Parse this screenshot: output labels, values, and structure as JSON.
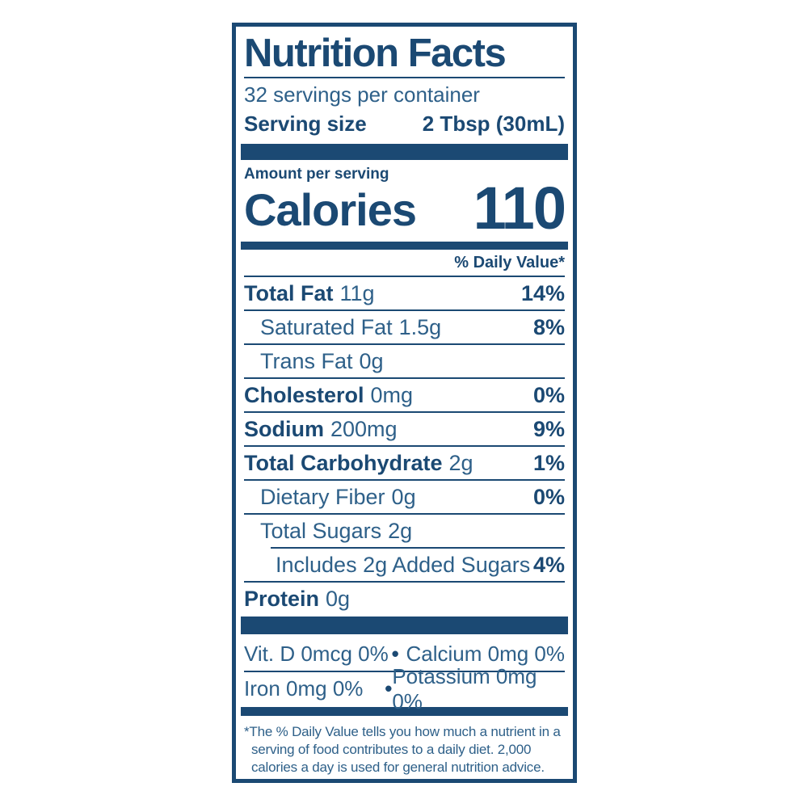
{
  "colors": {
    "navy": "#1B4973",
    "steel": "#2E6089",
    "background": "#FFFFFF"
  },
  "header": {
    "title": "Nutrition Facts",
    "servings_per_container": "32 servings per container",
    "serving_size_label": "Serving size",
    "serving_size_value": "2 Tbsp (30mL)"
  },
  "calories": {
    "amount_per_serving_label": "Amount per serving",
    "label": "Calories",
    "value": "110"
  },
  "daily_value_header": "% Daily Value*",
  "nutrients": [
    {
      "name": "Total Fat",
      "bold": true,
      "amount": "11g",
      "dv": "14%",
      "indent": 0,
      "sep_below": "full"
    },
    {
      "name": "Saturated Fat",
      "bold": false,
      "amount": "1.5g",
      "dv": "8%",
      "indent": 1,
      "sep_below": "full"
    },
    {
      "name": "Trans Fat",
      "bold": false,
      "amount": "0g",
      "dv": "",
      "indent": 1,
      "sep_below": "full"
    },
    {
      "name": "Cholesterol",
      "bold": true,
      "amount": "0mg",
      "dv": "0%",
      "indent": 0,
      "sep_below": "full"
    },
    {
      "name": "Sodium",
      "bold": true,
      "amount": "200mg",
      "dv": "9%",
      "indent": 0,
      "sep_below": "full"
    },
    {
      "name": "Total Carbohydrate",
      "bold": true,
      "amount": "2g",
      "dv": "1%",
      "indent": 0,
      "sep_below": "full"
    },
    {
      "name": "Dietary Fiber",
      "bold": false,
      "amount": "0g",
      "dv": "0%",
      "indent": 1,
      "sep_below": "full"
    },
    {
      "name": "Total Sugars",
      "bold": false,
      "amount": "2g",
      "dv": "",
      "indent": 1,
      "sep_below": "indent"
    },
    {
      "name": "Includes 2g Added Sugars",
      "bold": false,
      "amount": "",
      "dv": "4%",
      "indent": 2,
      "sep_below": "full"
    },
    {
      "name": "Protein",
      "bold": true,
      "amount": "0g",
      "dv": "",
      "indent": 0,
      "sep_below": "none"
    }
  ],
  "micronutrients": {
    "bullet": "•",
    "rows": [
      {
        "left": "Vit. D 0mcg 0%",
        "right": "Calcium 0mg 0%"
      },
      {
        "left": "Iron 0mg 0%",
        "right": "Potassium 0mg 0%"
      }
    ]
  },
  "footnote_lines": [
    "*The % Daily Value tells you how much a nutrient in a",
    "serving of food contributes to a daily diet. 2,000",
    "calories a day is used for general nutrition advice."
  ]
}
